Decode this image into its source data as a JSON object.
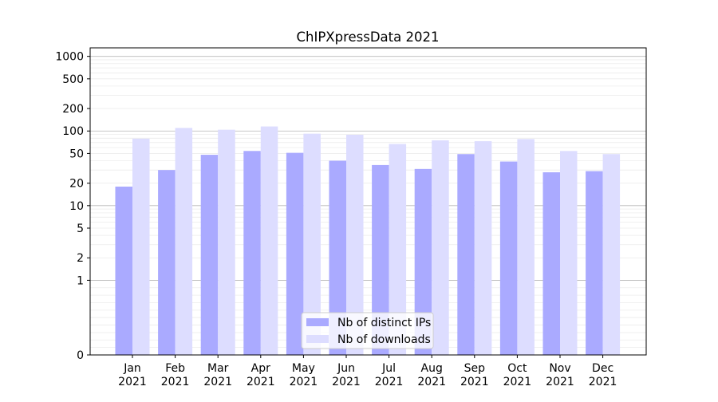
{
  "chart_data": {
    "type": "bar",
    "title": "ChIPXpressData 2021",
    "xlabel": "",
    "ylabel": "",
    "yscale": "symlog",
    "ylim": [
      0,
      1300
    ],
    "yticks": [
      0,
      1,
      2,
      5,
      10,
      20,
      50,
      100,
      200,
      500,
      1000
    ],
    "ytick_labels": [
      "0",
      "1",
      "2",
      "5",
      "10",
      "20",
      "50",
      "100",
      "200",
      "500",
      "1000"
    ],
    "categories": [
      [
        "Jan",
        "2021"
      ],
      [
        "Feb",
        "2021"
      ],
      [
        "Mar",
        "2021"
      ],
      [
        "Apr",
        "2021"
      ],
      [
        "May",
        "2021"
      ],
      [
        "Jun",
        "2021"
      ],
      [
        "Jul",
        "2021"
      ],
      [
        "Aug",
        "2021"
      ],
      [
        "Sep",
        "2021"
      ],
      [
        "Oct",
        "2021"
      ],
      [
        "Nov",
        "2021"
      ],
      [
        "Dec",
        "2021"
      ]
    ],
    "series": [
      {
        "name": "Nb of distinct IPs",
        "color": "#aaaaff",
        "values": [
          18,
          30,
          48,
          54,
          51,
          40,
          35,
          31,
          49,
          39,
          28,
          29
        ]
      },
      {
        "name": "Nb of downloads",
        "color": "#ddddff",
        "values": [
          79,
          110,
          104,
          115,
          92,
          89,
          67,
          75,
          73,
          78,
          54,
          49
        ]
      }
    ],
    "grid": true,
    "legend_position": "lower-center"
  }
}
